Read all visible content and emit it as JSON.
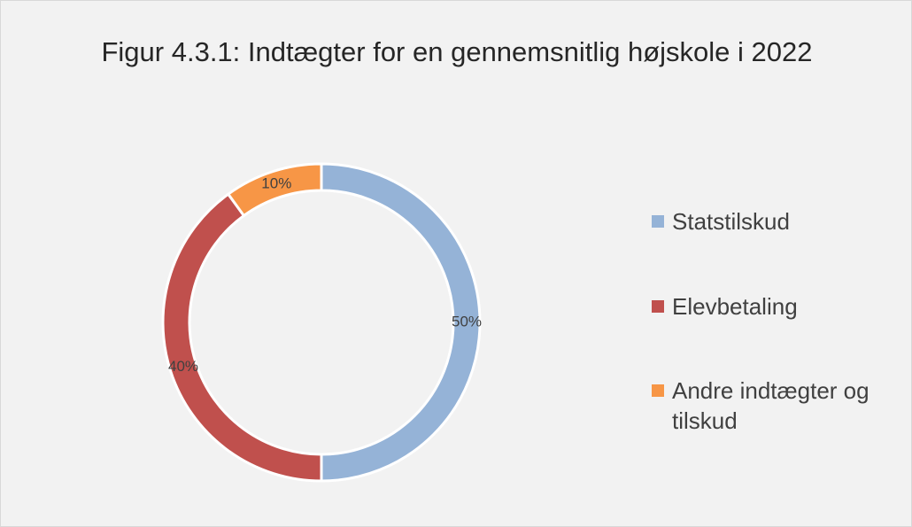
{
  "chart_data": {
    "type": "donut",
    "title": "Figur 4.3.1: Indtægter for en gennemsnitlig højskole i 2022",
    "categories": [
      "Statstilskud",
      "Elevbetaling",
      "Andre indtægter og tilskud"
    ],
    "values": [
      50,
      40,
      10
    ],
    "value_labels": [
      "50%",
      "40%",
      "10%"
    ],
    "colors": [
      "#95b3d7",
      "#c0504d",
      "#f79646"
    ],
    "legend": "right"
  }
}
